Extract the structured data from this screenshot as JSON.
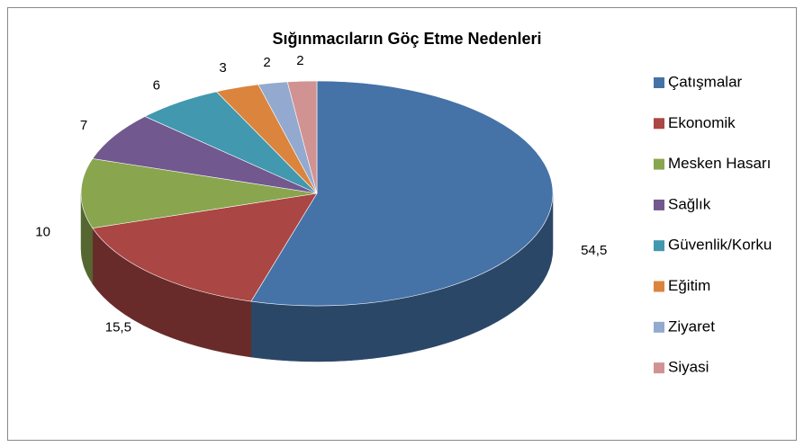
{
  "chart_data": {
    "type": "pie3d",
    "title": "Sığınmacıların Göç Etme Nedenleri",
    "categories": [
      "Çatışmalar",
      "Ekonomik",
      "Mesken Hasarı",
      "Sağlık",
      "Güvenlik/Korku",
      "Eğitim",
      "Ziyaret",
      "Siyasi"
    ],
    "values": [
      54.5,
      15.5,
      10,
      7,
      6,
      3,
      2,
      2
    ],
    "value_labels": [
      "54,5",
      "15,5",
      "10",
      "7",
      "6",
      "3",
      "2",
      "2"
    ],
    "colors": [
      "#4572a7",
      "#aa4643",
      "#89a54e",
      "#71588f",
      "#4198af",
      "#db843d",
      "#93a9cf",
      "#d19392"
    ],
    "legend": "right"
  }
}
